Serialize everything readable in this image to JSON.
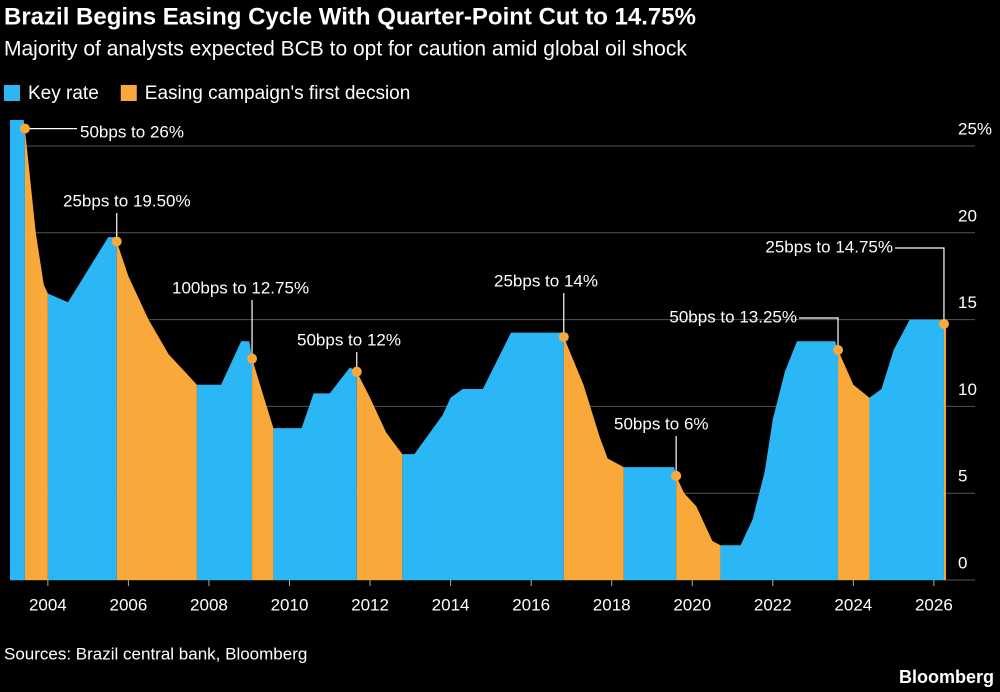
{
  "chart_data": {
    "type": "area",
    "title": "Brazil Begins Easing Cycle With Quarter-Point Cut to 14.75%",
    "subtitle": "Majority of analysts expected BCB to opt for caution amid global oil shock",
    "source": "Sources: Brazil central bank, Bloomberg",
    "brand": "Bloomberg",
    "x": [
      2003.06,
      2003.4,
      2003.43,
      2003.7,
      2003.9,
      2004.0,
      2004.5,
      2005.5,
      2005.65,
      2005.71,
      2006.0,
      2006.5,
      2007.0,
      2007.4,
      2007.7,
      2008.3,
      2008.8,
      2009.0,
      2009.07,
      2009.4,
      2009.6,
      2010.3,
      2010.6,
      2011.0,
      2011.5,
      2011.67,
      2012.0,
      2012.4,
      2012.8,
      2013.1,
      2013.8,
      2014.0,
      2014.3,
      2014.8,
      2015.5,
      2016.75,
      2016.81,
      2017.3,
      2017.7,
      2017.9,
      2018.3,
      2019.55,
      2019.6,
      2019.8,
      2020.1,
      2020.5,
      2020.7,
      2021.2,
      2021.5,
      2021.8,
      2022.0,
      2022.3,
      2022.6,
      2023.55,
      2023.62,
      2024.0,
      2024.4,
      2024.7,
      2025.0,
      2025.4,
      2026.15,
      2026.25,
      2026.3
    ],
    "series": [
      {
        "name": "Key rate",
        "color": "#2bb7f5",
        "values": [
          26.5,
          26.5,
          26,
          null,
          null,
          16.5,
          16,
          19.75,
          19.75,
          19.5,
          null,
          null,
          null,
          null,
          11.25,
          11.25,
          13.75,
          13.75,
          12.75,
          null,
          8.75,
          8.75,
          10.75,
          10.75,
          12.25,
          12,
          null,
          null,
          7.25,
          7.25,
          9.5,
          10.5,
          11,
          11,
          14.25,
          14.25,
          14,
          null,
          null,
          null,
          6.5,
          6.5,
          6,
          null,
          null,
          null,
          2,
          2,
          3.5,
          6.25,
          9.25,
          12,
          13.75,
          13.75,
          13.25,
          null,
          10.5,
          11,
          13.25,
          15,
          15,
          14.75,
          null
        ]
      },
      {
        "name": "Easing campaign's first decsion",
        "color": "#f9a83a",
        "values": [
          null,
          null,
          26,
          20,
          17,
          16.5,
          null,
          null,
          null,
          19.5,
          17.5,
          15,
          13,
          12,
          11.25,
          null,
          null,
          null,
          12.75,
          10.25,
          8.75,
          null,
          null,
          null,
          null,
          12,
          10.5,
          8.5,
          7.25,
          null,
          null,
          null,
          null,
          null,
          null,
          null,
          14,
          11.25,
          8.25,
          7,
          6.5,
          null,
          6,
          5,
          4.25,
          2.25,
          2,
          null,
          null,
          null,
          null,
          null,
          null,
          null,
          13.25,
          11.25,
          10.5,
          null,
          null,
          null,
          null,
          14.75,
          14.75
        ]
      }
    ],
    "annotations": [
      {
        "text": "50bps to 26%",
        "x": 2003.43,
        "y": 26
      },
      {
        "text": "25bps to 19.50%",
        "x": 2005.71,
        "y": 19.5
      },
      {
        "text": "100bps to 12.75%",
        "x": 2009.07,
        "y": 12.75
      },
      {
        "text": "50bps to 12%",
        "x": 2011.67,
        "y": 12
      },
      {
        "text": "25bps to 14%",
        "x": 2016.81,
        "y": 14
      },
      {
        "text": "50bps to 6%",
        "x": 2019.6,
        "y": 6
      },
      {
        "text": "50bps to 13.25%",
        "x": 2023.62,
        "y": 13.25
      },
      {
        "text": "25bps to 14.75%",
        "x": 2026.25,
        "y": 14.75
      }
    ],
    "xlim": [
      2003.06,
      2026.4
    ],
    "ylim": [
      0,
      27
    ],
    "xticks": [
      2004,
      2006,
      2008,
      2010,
      2012,
      2014,
      2016,
      2018,
      2020,
      2022,
      2024,
      2026
    ],
    "yticks": [
      0,
      5,
      10,
      15,
      20,
      {
        "value": 25,
        "label": "25%"
      }
    ],
    "grid": true,
    "legend": "top"
  }
}
